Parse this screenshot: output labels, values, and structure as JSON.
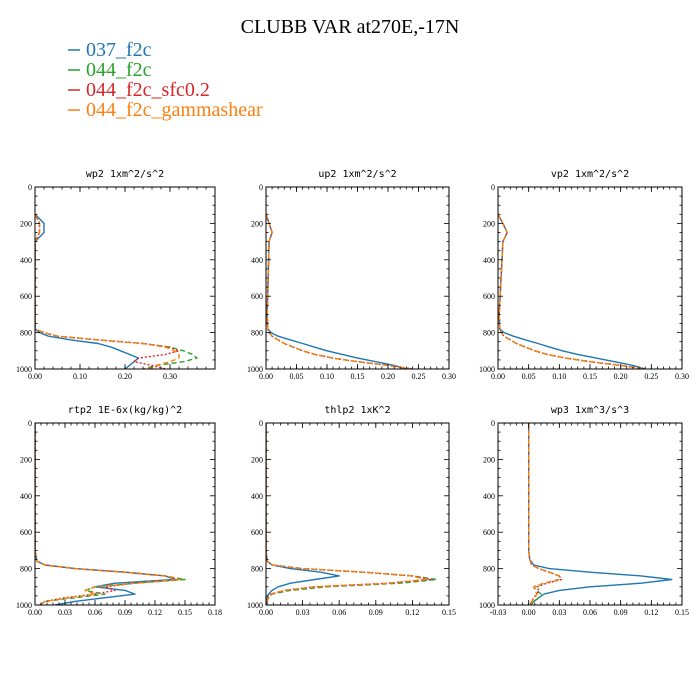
{
  "figure": {
    "title": "CLUBB VAR at270E,-17N"
  },
  "legend": [
    {
      "label": "037_f2c",
      "color": "#1f77b4"
    },
    {
      "label": "044_f2c",
      "color": "#2ca02c"
    },
    {
      "label": "044_f2c_sfc0.2",
      "color": "#d62728"
    },
    {
      "label": "044_f2c_gammashear",
      "color": "#ff7f0e"
    }
  ],
  "chart_data": [
    {
      "type": "line",
      "title": "wp2 1xm^2/s^2",
      "xlim": [
        0,
        0.4
      ],
      "xticks": [
        "0.00",
        "0.10",
        "0.20",
        "0.30"
      ],
      "xtick_values": [
        0,
        0.1,
        0.2,
        0.3
      ],
      "ylim": [
        1000,
        0
      ],
      "yticks": [
        "0",
        "200",
        "400",
        "600",
        "800",
        "1000"
      ],
      "y": [
        150,
        200,
        250,
        300,
        700,
        780,
        800,
        820,
        840,
        860,
        880,
        900,
        920,
        940,
        960,
        980,
        1000
      ],
      "series": [
        {
          "name": "037_f2c",
          "color": "#1f77b4",
          "dash": "",
          "x": [
            0,
            0.02,
            0.02,
            0,
            0,
            0,
            0.01,
            0.03,
            0.08,
            0.14,
            0.17,
            0.19,
            0.21,
            0.23,
            0.22,
            0.21,
            0.2
          ]
        },
        {
          "name": "044_f2c",
          "color": "#2ca02c",
          "dash": "5,3",
          "x": [
            0,
            0.01,
            0.01,
            0,
            0,
            0,
            0.02,
            0.05,
            0.14,
            0.24,
            0.3,
            0.33,
            0.35,
            0.36,
            0.33,
            0.27,
            0.24
          ]
        },
        {
          "name": "044_f2c_sfc0.2",
          "color": "#d62728",
          "dash": "2,2",
          "x": [
            0,
            0.01,
            0.01,
            0,
            0,
            0,
            0.02,
            0.05,
            0.14,
            0.24,
            0.3,
            0.32,
            0.29,
            0.23,
            0.22,
            0.26,
            0.29
          ]
        },
        {
          "name": "044_f2c_gammashear",
          "color": "#ff7f0e",
          "dash": "5,3",
          "x": [
            0,
            0.01,
            0.01,
            0,
            0,
            0,
            0.02,
            0.05,
            0.14,
            0.24,
            0.29,
            0.31,
            0.32,
            0.32,
            0.3,
            0.27,
            0.25
          ]
        }
      ]
    },
    {
      "type": "line",
      "title": "up2 1xm^2/s^2",
      "xlim": [
        0,
        0.3
      ],
      "xticks": [
        "0.00",
        "0.05",
        "0.10",
        "0.15",
        "0.20",
        "0.25",
        "0.30"
      ],
      "xtick_values": [
        0,
        0.05,
        0.1,
        0.15,
        0.2,
        0.25,
        0.3
      ],
      "ylim": [
        1000,
        0
      ],
      "yticks": [
        "0",
        "200",
        "400",
        "600",
        "800",
        "1000"
      ],
      "y": [
        150,
        200,
        250,
        300,
        700,
        780,
        800,
        820,
        840,
        860,
        880,
        900,
        920,
        940,
        960,
        980,
        1000
      ],
      "series": [
        {
          "name": "037_f2c",
          "color": "#1f77b4",
          "dash": "",
          "x": [
            0,
            0.005,
            0.01,
            0.005,
            0.002,
            0.003,
            0.008,
            0.02,
            0.04,
            0.06,
            0.08,
            0.1,
            0.125,
            0.15,
            0.18,
            0.21,
            0.23
          ]
        },
        {
          "name": "044_f2c",
          "color": "#2ca02c",
          "dash": "5,3",
          "x": [
            0,
            0.005,
            0.01,
            0.005,
            0.002,
            0.003,
            0.005,
            0.01,
            0.02,
            0.03,
            0.045,
            0.06,
            0.08,
            0.11,
            0.15,
            0.2,
            0.24
          ]
        },
        {
          "name": "044_f2c_sfc0.2",
          "color": "#d62728",
          "dash": "2,2",
          "x": [
            0,
            0.005,
            0.01,
            0.005,
            0.002,
            0.003,
            0.005,
            0.01,
            0.02,
            0.03,
            0.045,
            0.06,
            0.08,
            0.11,
            0.15,
            0.2,
            0.24
          ]
        },
        {
          "name": "044_f2c_gammashear",
          "color": "#ff7f0e",
          "dash": "5,3",
          "x": [
            0,
            0.005,
            0.01,
            0.005,
            0.002,
            0.003,
            0.005,
            0.01,
            0.02,
            0.03,
            0.045,
            0.06,
            0.08,
            0.11,
            0.15,
            0.2,
            0.24
          ]
        }
      ]
    },
    {
      "type": "line",
      "title": "vp2 1xm^2/s^2",
      "xlim": [
        0,
        0.3
      ],
      "xticks": [
        "0.00",
        "0.05",
        "0.10",
        "0.15",
        "0.20",
        "0.25",
        "0.30"
      ],
      "xtick_values": [
        0,
        0.05,
        0.1,
        0.15,
        0.2,
        0.25,
        0.3
      ],
      "ylim": [
        1000,
        0
      ],
      "yticks": [
        "0",
        "200",
        "400",
        "600",
        "800",
        "1000"
      ],
      "y": [
        150,
        200,
        250,
        300,
        700,
        780,
        800,
        820,
        840,
        860,
        880,
        900,
        920,
        940,
        960,
        980,
        1000
      ],
      "series": [
        {
          "name": "037_f2c",
          "color": "#1f77b4",
          "dash": "",
          "x": [
            0,
            0.008,
            0.015,
            0.008,
            0.002,
            0.003,
            0.01,
            0.025,
            0.045,
            0.065,
            0.085,
            0.105,
            0.13,
            0.16,
            0.19,
            0.22,
            0.24
          ]
        },
        {
          "name": "044_f2c",
          "color": "#2ca02c",
          "dash": "5,3",
          "x": [
            0,
            0.008,
            0.015,
            0.008,
            0.002,
            0.003,
            0.005,
            0.01,
            0.02,
            0.03,
            0.045,
            0.06,
            0.08,
            0.11,
            0.15,
            0.2,
            0.24
          ]
        },
        {
          "name": "044_f2c_sfc0.2",
          "color": "#d62728",
          "dash": "2,2",
          "x": [
            0,
            0.008,
            0.015,
            0.008,
            0.002,
            0.003,
            0.005,
            0.01,
            0.02,
            0.03,
            0.045,
            0.06,
            0.08,
            0.11,
            0.15,
            0.2,
            0.24
          ]
        },
        {
          "name": "044_f2c_gammashear",
          "color": "#ff7f0e",
          "dash": "5,3",
          "x": [
            0,
            0.008,
            0.015,
            0.008,
            0.002,
            0.003,
            0.005,
            0.01,
            0.02,
            0.03,
            0.045,
            0.06,
            0.08,
            0.11,
            0.15,
            0.2,
            0.24
          ]
        }
      ]
    },
    {
      "type": "line",
      "title": "rtp2 1E-6x(kg/kg)^2",
      "xlim": [
        0,
        0.18
      ],
      "xticks": [
        "0.00",
        "0.03",
        "0.06",
        "0.09",
        "0.12",
        "0.15",
        "0.18"
      ],
      "xtick_values": [
        0,
        0.03,
        0.06,
        0.09,
        0.12,
        0.15,
        0.18
      ],
      "ylim": [
        1000,
        0
      ],
      "yticks": [
        "0",
        "200",
        "400",
        "600",
        "800",
        "1000"
      ],
      "y": [
        0,
        700,
        760,
        780,
        800,
        820,
        840,
        860,
        880,
        900,
        920,
        940,
        960,
        980,
        1000
      ],
      "series": [
        {
          "name": "037_f2c",
          "color": "#1f77b4",
          "dash": "",
          "x": [
            0,
            0,
            0.002,
            0.01,
            0.04,
            0.09,
            0.13,
            0.14,
            0.08,
            0.06,
            0.09,
            0.1,
            0.07,
            0.04,
            0.02
          ]
        },
        {
          "name": "044_f2c",
          "color": "#2ca02c",
          "dash": "5,3",
          "x": [
            0,
            0,
            0.002,
            0.01,
            0.04,
            0.09,
            0.13,
            0.15,
            0.1,
            0.06,
            0.05,
            0.07,
            0.04,
            0.01,
            0.005
          ]
        },
        {
          "name": "044_f2c_sfc0.2",
          "color": "#d62728",
          "dash": "2,2",
          "x": [
            0,
            0,
            0.002,
            0.01,
            0.04,
            0.09,
            0.13,
            0.145,
            0.1,
            0.07,
            0.08,
            0.06,
            0.03,
            0.01,
            0.005
          ]
        },
        {
          "name": "044_f2c_gammashear",
          "color": "#ff7f0e",
          "dash": "5,3",
          "x": [
            0,
            0,
            0.002,
            0.01,
            0.04,
            0.09,
            0.13,
            0.145,
            0.1,
            0.06,
            0.05,
            0.06,
            0.035,
            0.01,
            0.005
          ]
        }
      ]
    },
    {
      "type": "line",
      "title": "thlp2 1xK^2",
      "xlim": [
        0,
        0.15
      ],
      "xticks": [
        "0.00",
        "0.03",
        "0.06",
        "0.09",
        "0.12",
        "0.15"
      ],
      "xtick_values": [
        0,
        0.03,
        0.06,
        0.09,
        0.12,
        0.15
      ],
      "ylim": [
        1000,
        0
      ],
      "yticks": [
        "0",
        "200",
        "400",
        "600",
        "800",
        "1000"
      ],
      "y": [
        0,
        700,
        760,
        780,
        800,
        820,
        840,
        860,
        880,
        900,
        920,
        940,
        960,
        980,
        1000
      ],
      "series": [
        {
          "name": "037_f2c",
          "color": "#1f77b4",
          "dash": "",
          "x": [
            0,
            0,
            0.001,
            0.005,
            0.02,
            0.045,
            0.06,
            0.04,
            0.02,
            0.01,
            0.005,
            0.002,
            0.001,
            0.001,
            0.001
          ]
        },
        {
          "name": "044_f2c",
          "color": "#2ca02c",
          "dash": "5,3",
          "x": [
            0,
            0,
            0.001,
            0.005,
            0.03,
            0.08,
            0.12,
            0.14,
            0.11,
            0.05,
            0.02,
            0.005,
            0.002,
            0.001,
            0.001
          ]
        },
        {
          "name": "044_f2c_sfc0.2",
          "color": "#d62728",
          "dash": "2,2",
          "x": [
            0,
            0,
            0.001,
            0.005,
            0.03,
            0.08,
            0.12,
            0.135,
            0.1,
            0.04,
            0.015,
            0.004,
            0.002,
            0.001,
            0.001
          ]
        },
        {
          "name": "044_f2c_gammashear",
          "color": "#ff7f0e",
          "dash": "5,3",
          "x": [
            0,
            0,
            0.001,
            0.005,
            0.03,
            0.08,
            0.12,
            0.13,
            0.1,
            0.04,
            0.015,
            0.004,
            0.002,
            0.001,
            0.001
          ]
        }
      ]
    },
    {
      "type": "line",
      "title": "wp3 1xm^3/s^3",
      "xlim": [
        -0.03,
        0.15
      ],
      "xticks": [
        "-0.03",
        "0.00",
        "0.03",
        "0.06",
        "0.09",
        "0.12",
        "0.15"
      ],
      "xtick_values": [
        -0.03,
        0,
        0.03,
        0.06,
        0.09,
        0.12,
        0.15
      ],
      "ylim": [
        1000,
        0
      ],
      "yticks": [
        "0",
        "200",
        "400",
        "600",
        "800",
        "1000"
      ],
      "y": [
        0,
        700,
        750,
        780,
        800,
        820,
        840,
        860,
        880,
        900,
        920,
        940,
        960,
        980,
        1000
      ],
      "series": [
        {
          "name": "037_f2c",
          "color": "#1f77b4",
          "dash": "",
          "x": [
            0,
            0,
            0.001,
            0.005,
            0.02,
            0.06,
            0.11,
            0.14,
            0.11,
            0.06,
            0.03,
            0.015,
            0.01,
            0.005,
            0.002
          ]
        },
        {
          "name": "044_f2c",
          "color": "#2ca02c",
          "dash": "5,3",
          "x": [
            0,
            0,
            0.001,
            0.003,
            0.01,
            0.02,
            0.03,
            0.03,
            0.015,
            0.005,
            0.008,
            0.012,
            0.01,
            0.005,
            0.002
          ]
        },
        {
          "name": "044_f2c_sfc0.2",
          "color": "#d62728",
          "dash": "2,2",
          "x": [
            0,
            0,
            0.001,
            0.003,
            0.01,
            0.02,
            0.03,
            0.032,
            0.018,
            0.008,
            0.01,
            0.008,
            0.005,
            0.003,
            0.001
          ]
        },
        {
          "name": "044_f2c_gammashear",
          "color": "#ff7f0e",
          "dash": "5,3",
          "x": [
            0,
            0,
            0.001,
            0.003,
            0.01,
            0.02,
            0.03,
            0.03,
            0.015,
            0.005,
            0.006,
            0.008,
            0.006,
            0.003,
            0.001
          ]
        }
      ]
    }
  ]
}
